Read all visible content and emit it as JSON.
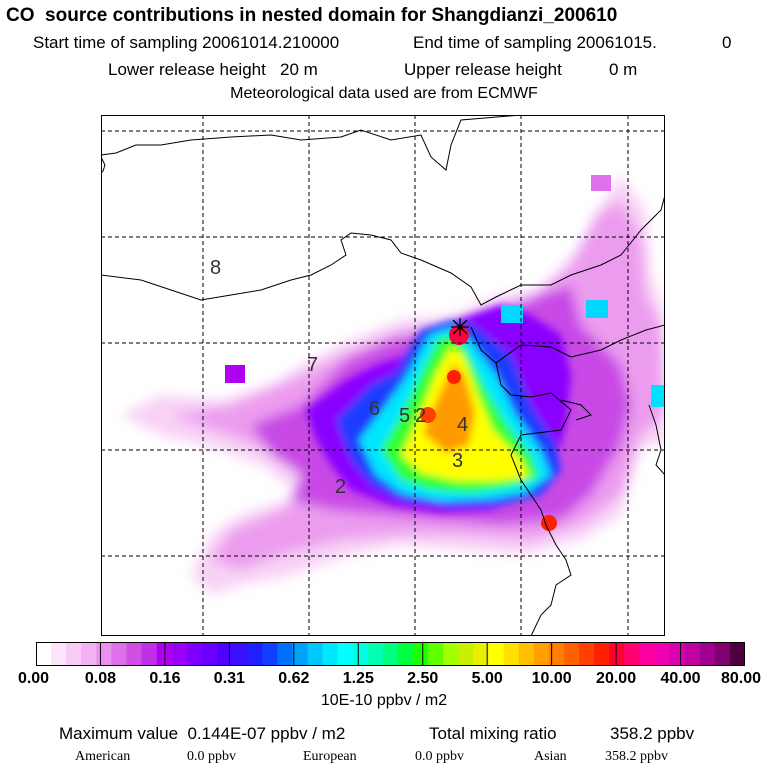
{
  "header": {
    "title": "CO  source contributions in nested domain for Shangdianzi_200610",
    "start_label": "Start time of sampling 20061014.210000",
    "end_label": "End time of sampling 20061015.",
    "end_value": "0",
    "lower_label": "Lower release height   20 m",
    "upper_label": "Upper release height",
    "upper_value": "0 m",
    "met_label": "Meteorological data used are from ECMWF"
  },
  "map": {
    "contour_labels": [
      "8",
      "7",
      "6",
      "5",
      "2",
      "4",
      "3",
      "2"
    ],
    "site_marker": "receptor-site"
  },
  "colorbar": {
    "tick_labels": [
      "0.00",
      "0.08",
      "0.16",
      "0.31",
      "0.62",
      "1.25",
      "2.50",
      "5.00",
      "10.00",
      "20.00",
      "40.00",
      "80.00"
    ],
    "units": "10E-10 ppbv / m2",
    "colors": [
      "#ffffff",
      "#fde6fc",
      "#f9ccf8",
      "#f3b0f3",
      "#eb90ee",
      "#e070ea",
      "#d050e6",
      "#c030e6",
      "#b000f0",
      "#9a00f6",
      "#8000ff",
      "#6a00ff",
      "#5000ff",
      "#3a10ff",
      "#2020ff",
      "#1040ff",
      "#0070ff",
      "#00a0ff",
      "#00c8ff",
      "#00e8ff",
      "#00ffff",
      "#00ffe0",
      "#00ffb0",
      "#00ff80",
      "#00ff40",
      "#20ff00",
      "#60ff00",
      "#a0ff00",
      "#c8f000",
      "#e8f000",
      "#ffff00",
      "#ffe000",
      "#ffc000",
      "#ffa000",
      "#ff8000",
      "#ff6000",
      "#ff4000",
      "#ff2000",
      "#ff0030",
      "#ff0070",
      "#ff00a0",
      "#f000b0",
      "#d800b0",
      "#c000a0",
      "#a00090",
      "#800070",
      "#500040"
    ]
  },
  "footer": {
    "max_label": "Maximum value  0.144E-07 ppbv / m2",
    "total_label": "Total mixing ratio",
    "total_value": "358.2 ppbv",
    "american_label": "American",
    "american_value": "0.0 ppbv",
    "european_label": "European",
    "european_value": "0.0 ppbv",
    "asian_label": "Asian",
    "asian_value": "358.2 ppbv"
  }
}
